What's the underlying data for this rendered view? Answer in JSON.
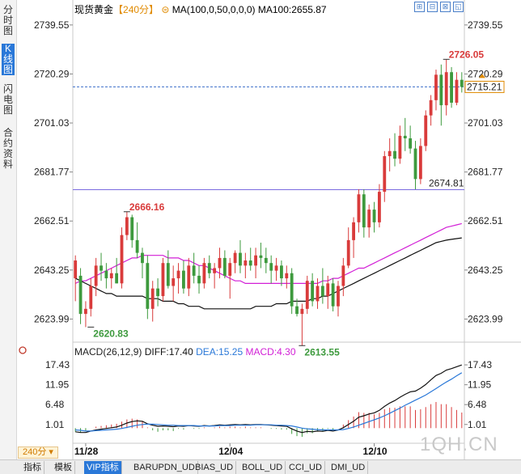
{
  "left_tabs": [
    {
      "label": "分时图",
      "active": false
    },
    {
      "label": "K线图",
      "active": true
    },
    {
      "label": "闪电图",
      "active": false
    },
    {
      "label": "合约资料",
      "active": false
    }
  ],
  "header": {
    "symbol": "现货黄金",
    "period": "【240分】",
    "ma_params": "MA(100,0,50,0,0,0)",
    "ma_value": "MA100:2655.87"
  },
  "window_buttons": [
    "⊞",
    "⊟",
    "⊠",
    "◱",
    "✕"
  ],
  "macd_header": {
    "params": "MACD(26,12,9)",
    "diff": "DIFF:17.40",
    "dea": "DEA:15.25",
    "macd": "MACD:4.30"
  },
  "period_label": "240分",
  "watermark": "1QH.CN",
  "bottom_tabs": [
    {
      "label": "指标",
      "active": false
    },
    {
      "label": "模板",
      "active": false
    },
    {
      "label": "VIP指标",
      "active": true
    },
    {
      "label": "BARUPDN_UD",
      "active": false
    },
    {
      "label": "BIAS_UD",
      "active": false
    },
    {
      "label": "BOLL_UD",
      "active": false
    },
    {
      "label": "CCI_UD",
      "active": false
    },
    {
      "label": "DMI_UD",
      "active": false
    }
  ],
  "colors": {
    "up": "#d93b3b",
    "down": "#3d9a3d",
    "ma_black": "#111111",
    "ma_magenta": "#d21fd6",
    "accent": "#2a78d8",
    "diff": "#111111",
    "dea": "#2a78d8",
    "macd": "#d21fd6"
  },
  "chart_data": [
    {
      "type": "candlestick",
      "title": "现货黄金【240分】",
      "y_ticks": [
        "2739.55",
        "2720.29",
        "2701.03",
        "2681.77",
        "2662.51",
        "2643.25",
        "2623.99"
      ],
      "ylim": [
        2616.5,
        2743
      ],
      "x_tick_labels": [
        {
          "label": "11/28",
          "index": 2
        },
        {
          "label": "12/04",
          "index": 30
        },
        {
          "label": "12/10",
          "index": 58
        }
      ],
      "current_price": "2715.21",
      "reference_price": "2674.81",
      "annotations": [
        {
          "label": "2726.05",
          "index": 72,
          "value": 2726.05,
          "color": "#d93b3b"
        },
        {
          "label": "2666.16",
          "index": 10,
          "value": 2666.16,
          "color": "#d93b3b"
        },
        {
          "label": "2620.83",
          "index": 3,
          "value": 2620.83,
          "color": "#3d9a3d"
        },
        {
          "label": "2613.55",
          "index": 44,
          "value": 2613.55,
          "color": "#3d9a3d"
        }
      ],
      "candles": [
        {
          "o": 2640,
          "h": 2649,
          "l": 2631,
          "c": 2647
        },
        {
          "o": 2641,
          "h": 2644,
          "l": 2622,
          "c": 2626
        },
        {
          "o": 2626,
          "h": 2631,
          "l": 2620.83,
          "c": 2628
        },
        {
          "o": 2628,
          "h": 2640,
          "l": 2625,
          "c": 2637
        },
        {
          "o": 2637,
          "h": 2648,
          "l": 2633,
          "c": 2645
        },
        {
          "o": 2645,
          "h": 2650,
          "l": 2639,
          "c": 2643
        },
        {
          "o": 2643,
          "h": 2646,
          "l": 2636,
          "c": 2640
        },
        {
          "o": 2640,
          "h": 2644,
          "l": 2636,
          "c": 2642
        },
        {
          "o": 2642,
          "h": 2648,
          "l": 2638,
          "c": 2638
        },
        {
          "o": 2638,
          "h": 2660,
          "l": 2636,
          "c": 2657
        },
        {
          "o": 2657,
          "h": 2666.16,
          "l": 2655,
          "c": 2664
        },
        {
          "o": 2664,
          "h": 2665,
          "l": 2652,
          "c": 2655
        },
        {
          "o": 2655,
          "h": 2662,
          "l": 2648,
          "c": 2650
        },
        {
          "o": 2650,
          "h": 2652,
          "l": 2640,
          "c": 2646
        },
        {
          "o": 2646,
          "h": 2649,
          "l": 2624,
          "c": 2628
        },
        {
          "o": 2628,
          "h": 2639,
          "l": 2623,
          "c": 2636
        },
        {
          "o": 2636,
          "h": 2640,
          "l": 2629,
          "c": 2633
        },
        {
          "o": 2633,
          "h": 2648,
          "l": 2631,
          "c": 2646
        },
        {
          "o": 2646,
          "h": 2651,
          "l": 2636,
          "c": 2637
        },
        {
          "o": 2637,
          "h": 2645,
          "l": 2631,
          "c": 2640
        },
        {
          "o": 2640,
          "h": 2646,
          "l": 2634,
          "c": 2643
        },
        {
          "o": 2643,
          "h": 2647,
          "l": 2634,
          "c": 2636
        },
        {
          "o": 2636,
          "h": 2648,
          "l": 2633,
          "c": 2645
        },
        {
          "o": 2645,
          "h": 2650,
          "l": 2638,
          "c": 2641
        },
        {
          "o": 2641,
          "h": 2645,
          "l": 2634,
          "c": 2638
        },
        {
          "o": 2638,
          "h": 2648,
          "l": 2636,
          "c": 2646
        },
        {
          "o": 2646,
          "h": 2649,
          "l": 2640,
          "c": 2642
        },
        {
          "o": 2642,
          "h": 2646,
          "l": 2636,
          "c": 2644
        },
        {
          "o": 2644,
          "h": 2652,
          "l": 2640,
          "c": 2648
        },
        {
          "o": 2648,
          "h": 2651,
          "l": 2640,
          "c": 2641
        },
        {
          "o": 2641,
          "h": 2648,
          "l": 2632,
          "c": 2646
        },
        {
          "o": 2646,
          "h": 2651,
          "l": 2642,
          "c": 2650
        },
        {
          "o": 2650,
          "h": 2655,
          "l": 2642,
          "c": 2645
        },
        {
          "o": 2645,
          "h": 2650,
          "l": 2640,
          "c": 2647
        },
        {
          "o": 2647,
          "h": 2652,
          "l": 2643,
          "c": 2645
        },
        {
          "o": 2645,
          "h": 2652,
          "l": 2640,
          "c": 2649
        },
        {
          "o": 2649,
          "h": 2654,
          "l": 2644,
          "c": 2648
        },
        {
          "o": 2648,
          "h": 2652,
          "l": 2642,
          "c": 2646
        },
        {
          "o": 2646,
          "h": 2649,
          "l": 2638,
          "c": 2643
        },
        {
          "o": 2643,
          "h": 2648,
          "l": 2639,
          "c": 2645
        },
        {
          "o": 2645,
          "h": 2647,
          "l": 2637,
          "c": 2640
        },
        {
          "o": 2640,
          "h": 2645,
          "l": 2636,
          "c": 2642
        },
        {
          "o": 2642,
          "h": 2644,
          "l": 2626,
          "c": 2629
        },
        {
          "o": 2629,
          "h": 2632,
          "l": 2625,
          "c": 2626
        },
        {
          "o": 2626,
          "h": 2630,
          "l": 2613.55,
          "c": 2628
        },
        {
          "o": 2628,
          "h": 2641,
          "l": 2626,
          "c": 2639
        },
        {
          "o": 2639,
          "h": 2642,
          "l": 2629,
          "c": 2631
        },
        {
          "o": 2631,
          "h": 2640,
          "l": 2628,
          "c": 2637
        },
        {
          "o": 2637,
          "h": 2644,
          "l": 2630,
          "c": 2633
        },
        {
          "o": 2633,
          "h": 2641,
          "l": 2628,
          "c": 2638
        },
        {
          "o": 2638,
          "h": 2640,
          "l": 2627,
          "c": 2629
        },
        {
          "o": 2629,
          "h": 2639,
          "l": 2625,
          "c": 2637
        },
        {
          "o": 2637,
          "h": 2648,
          "l": 2633,
          "c": 2645
        },
        {
          "o": 2645,
          "h": 2660,
          "l": 2644,
          "c": 2655
        },
        {
          "o": 2655,
          "h": 2664,
          "l": 2648,
          "c": 2662
        },
        {
          "o": 2662,
          "h": 2675,
          "l": 2658,
          "c": 2673
        },
        {
          "o": 2673,
          "h": 2675,
          "l": 2656,
          "c": 2660
        },
        {
          "o": 2660,
          "h": 2669,
          "l": 2656,
          "c": 2667
        },
        {
          "o": 2667,
          "h": 2670,
          "l": 2658,
          "c": 2662
        },
        {
          "o": 2662,
          "h": 2677,
          "l": 2660,
          "c": 2674
        },
        {
          "o": 2674,
          "h": 2690,
          "l": 2670,
          "c": 2688
        },
        {
          "o": 2688,
          "h": 2695,
          "l": 2682,
          "c": 2690
        },
        {
          "o": 2690,
          "h": 2697,
          "l": 2684,
          "c": 2687
        },
        {
          "o": 2687,
          "h": 2700,
          "l": 2685,
          "c": 2696
        },
        {
          "o": 2696,
          "h": 2703,
          "l": 2690,
          "c": 2695
        },
        {
          "o": 2695,
          "h": 2700,
          "l": 2689,
          "c": 2691
        },
        {
          "o": 2691,
          "h": 2694,
          "l": 2675,
          "c": 2679
        },
        {
          "o": 2679,
          "h": 2695,
          "l": 2677,
          "c": 2692
        },
        {
          "o": 2692,
          "h": 2706,
          "l": 2690,
          "c": 2704
        },
        {
          "o": 2704,
          "h": 2712,
          "l": 2700,
          "c": 2710
        },
        {
          "o": 2710,
          "h": 2722,
          "l": 2706,
          "c": 2720
        },
        {
          "o": 2720,
          "h": 2724,
          "l": 2700,
          "c": 2708
        },
        {
          "o": 2708,
          "h": 2726.05,
          "l": 2704,
          "c": 2721
        },
        {
          "o": 2721,
          "h": 2723,
          "l": 2707,
          "c": 2709
        },
        {
          "o": 2709,
          "h": 2721,
          "l": 2708,
          "c": 2718
        },
        {
          "o": 2718,
          "h": 2721,
          "l": 2713,
          "c": 2715.21
        }
      ],
      "ma100": [
        2640,
        2639,
        2638,
        2637,
        2636,
        2635,
        2634,
        2634,
        2633,
        2633,
        2633,
        2633,
        2633,
        2633,
        2632,
        2632,
        2632,
        2631,
        2631,
        2631,
        2630,
        2630,
        2629,
        2629,
        2629,
        2628,
        2628,
        2628,
        2628,
        2628,
        2628,
        2628,
        2628,
        2628,
        2628,
        2629,
        2629,
        2629,
        2629,
        2630,
        2630,
        2630,
        2631,
        2631,
        2631,
        2631,
        2632,
        2632,
        2633,
        2633,
        2634,
        2635,
        2636,
        2637,
        2638,
        2639,
        2640,
        2641,
        2642,
        2643,
        2644,
        2645,
        2646,
        2647,
        2648,
        2649,
        2650,
        2651,
        2652,
        2653,
        2654,
        2654.5,
        2655,
        2655.3,
        2655.6,
        2655.87
      ],
      "ma50": [
        2638,
        2639,
        2639,
        2640,
        2641,
        2642,
        2643,
        2644,
        2645,
        2646,
        2647,
        2648,
        2648,
        2649,
        2649,
        2649,
        2649,
        2649,
        2648,
        2648,
        2648,
        2647,
        2647,
        2646,
        2645,
        2645,
        2644,
        2643,
        2642,
        2641,
        2640,
        2639,
        2639,
        2638,
        2638,
        2638,
        2638,
        2638,
        2638,
        2638,
        2638,
        2638,
        2638,
        2638,
        2638,
        2638,
        2638,
        2638,
        2639,
        2639,
        2640,
        2640,
        2641,
        2642,
        2643,
        2644,
        2644,
        2645,
        2646,
        2647,
        2648,
        2649,
        2650,
        2651,
        2652,
        2653,
        2654,
        2655,
        2656,
        2657,
        2658,
        2659,
        2660,
        2660.5,
        2661,
        2661.5
      ]
    },
    {
      "type": "macd",
      "y_ticks": [
        "17.43",
        "11.95",
        "6.48",
        "1.01"
      ],
      "ylim": [
        -3.5,
        19
      ],
      "diff": [
        -1,
        -1.2,
        -1.2,
        -0.8,
        -0.5,
        -0.3,
        -0.1,
        0.1,
        0.3,
        0.8,
        1.4,
        1.8,
        2,
        1.9,
        1.2,
        0.8,
        0.5,
        0.6,
        0.5,
        0.4,
        0.6,
        0.5,
        0.7,
        0.6,
        0.5,
        0.7,
        0.6,
        0.7,
        0.9,
        0.8,
        0.9,
        1,
        0.9,
        1,
        0.9,
        1,
        1,
        0.9,
        0.8,
        0.7,
        0.6,
        0.5,
        -0.2,
        -0.8,
        -1.2,
        -0.9,
        -1,
        -0.8,
        -0.9,
        -0.6,
        -0.8,
        -0.5,
        0.1,
        1,
        1.9,
        3,
        3.4,
        3.9,
        4.2,
        4.9,
        6,
        6.9,
        7.6,
        8.5,
        9.3,
        10,
        10.2,
        11,
        12,
        13.3,
        14.5,
        15.1,
        16,
        16.4,
        16.9,
        17.4
      ],
      "dea": [
        -0.5,
        -0.6,
        -0.8,
        -0.8,
        -0.7,
        -0.6,
        -0.5,
        -0.4,
        -0.3,
        -0.1,
        0.2,
        0.5,
        0.8,
        1,
        1.1,
        1.1,
        1,
        0.9,
        0.8,
        0.8,
        0.7,
        0.7,
        0.7,
        0.7,
        0.6,
        0.6,
        0.6,
        0.6,
        0.7,
        0.7,
        0.7,
        0.8,
        0.8,
        0.8,
        0.8,
        0.9,
        0.9,
        0.9,
        0.9,
        0.8,
        0.8,
        0.7,
        0.6,
        0.3,
        0,
        -0.2,
        -0.3,
        -0.4,
        -0.5,
        -0.5,
        -0.5,
        -0.5,
        -0.4,
        -0.1,
        0.3,
        0.8,
        1.3,
        1.8,
        2.3,
        2.8,
        3.4,
        4.1,
        4.8,
        5.5,
        6.3,
        7,
        7.7,
        8.4,
        9.1,
        10,
        10.9,
        11.8,
        12.7,
        13.5,
        14.4,
        15.25
      ]
    }
  ]
}
